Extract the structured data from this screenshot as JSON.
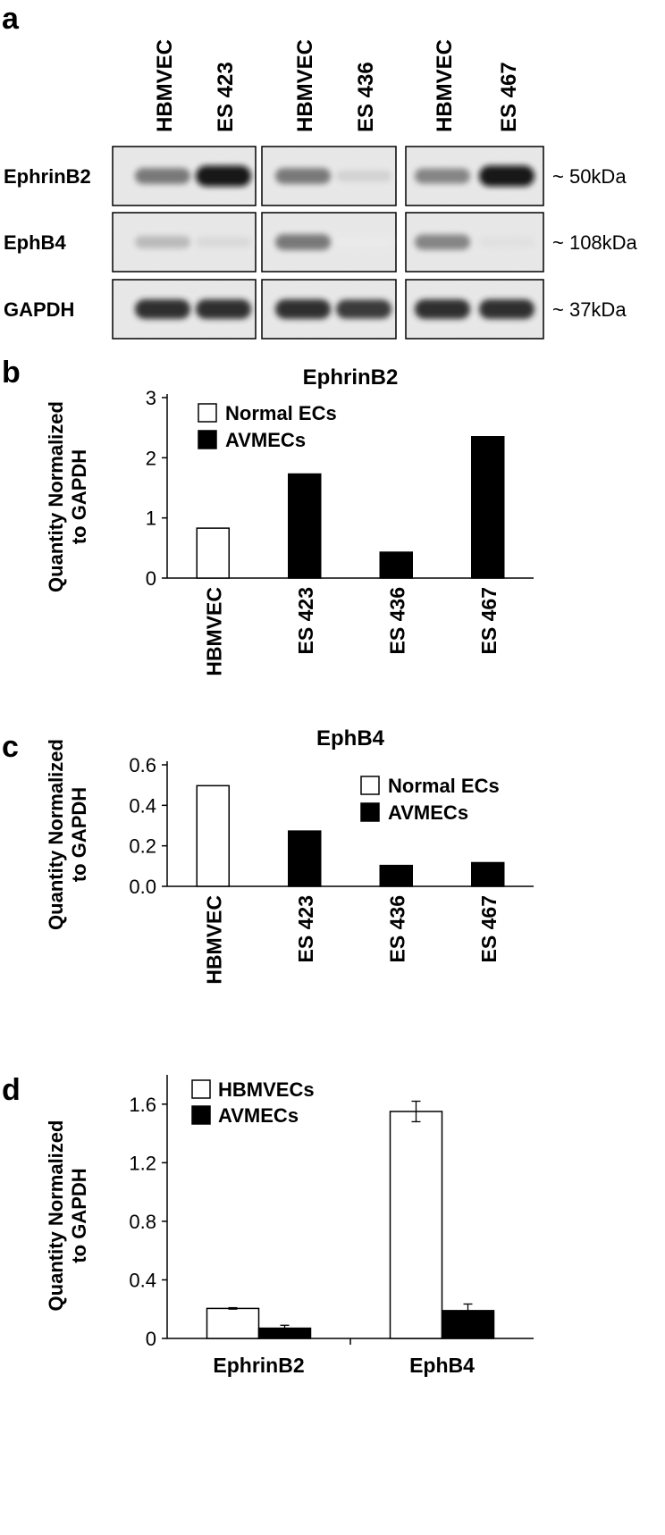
{
  "panel_a": {
    "letter": "a",
    "lane_labels": [
      "HBMVEC",
      "ES 423",
      "HBMVEC",
      "ES 436",
      "HBMVEC",
      "ES 467"
    ],
    "rows": [
      {
        "name": "EphrinB2",
        "size": "~ 50kDa",
        "band_intensity": [
          0.55,
          0.95,
          0.55,
          0.18,
          0.5,
          0.95
        ]
      },
      {
        "name": "EphB4",
        "size": "~ 108kDa",
        "band_intensity": [
          0.28,
          0.15,
          0.55,
          0.08,
          0.5,
          0.12
        ]
      },
      {
        "name": "GAPDH",
        "size": "~ 37kDa",
        "band_intensity": [
          0.85,
          0.85,
          0.85,
          0.8,
          0.85,
          0.85
        ]
      }
    ]
  },
  "chart_data": [
    {
      "id": "b",
      "type": "bar",
      "letter": "b",
      "title": "EphrinB2",
      "ylabel": [
        "Quantity Normalized",
        "to GAPDH"
      ],
      "categories": [
        "HBMVEC",
        "ES 423",
        "ES 436",
        "ES 467"
      ],
      "values": [
        0.83,
        1.73,
        0.43,
        2.35
      ],
      "bar_fill": [
        "#ffffff",
        "#000000",
        "#000000",
        "#000000"
      ],
      "ylim": [
        0,
        3
      ],
      "yticks": [
        "0",
        "1",
        "2",
        "3"
      ],
      "legend": [
        {
          "label": "Normal ECs",
          "color": "#ffffff"
        },
        {
          "label": "AVMECs",
          "color": "#000000"
        }
      ],
      "legend_position": "top-left"
    },
    {
      "id": "c",
      "type": "bar",
      "letter": "c",
      "title": "EphB4",
      "ylabel": [
        "Quantity Normalized",
        "to GAPDH"
      ],
      "categories": [
        "HBMVEC",
        "ES 423",
        "ES 436",
        "ES 467"
      ],
      "values": [
        0.497,
        0.273,
        0.103,
        0.117
      ],
      "bar_fill": [
        "#ffffff",
        "#000000",
        "#000000",
        "#000000"
      ],
      "ylim": [
        0,
        0.6
      ],
      "yticks": [
        "0.0",
        "0.2",
        "0.4",
        "0.6"
      ],
      "legend": [
        {
          "label": "Normal ECs",
          "color": "#ffffff"
        },
        {
          "label": "AVMECs",
          "color": "#000000"
        }
      ],
      "legend_position": "top-right"
    },
    {
      "id": "d",
      "type": "bar",
      "letter": "d",
      "title": "",
      "ylabel": [
        "Quantity Normalized",
        "to GAPDH"
      ],
      "categories": [
        "EphrinB2",
        "EphB4"
      ],
      "series": [
        {
          "name": "HBMVECs",
          "color": "#ffffff",
          "values": [
            0.205,
            1.55
          ],
          "errors": [
            0.005,
            0.07
          ]
        },
        {
          "name": "AVMECs",
          "color": "#000000",
          "values": [
            0.07,
            0.19
          ],
          "errors": [
            0.02,
            0.045
          ]
        }
      ],
      "ylim": [
        0,
        1.8
      ],
      "yticks": [
        "0",
        "0.4",
        "0.8",
        "1.2",
        "1.6"
      ],
      "yticks_values": [
        0,
        0.4,
        0.8,
        1.2,
        1.6
      ],
      "legend_position": "top-left"
    }
  ]
}
